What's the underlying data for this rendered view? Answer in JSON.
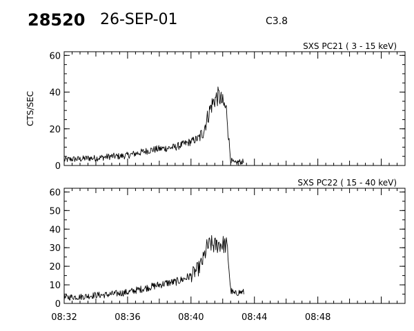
{
  "header": {
    "event_id": "28520",
    "date": "26-SEP-01",
    "flare_class": "C3.8"
  },
  "colors": {
    "ink": "#000000",
    "background": "#ffffff"
  },
  "chart_data": [
    {
      "type": "line",
      "title": "SXS PC21  (  3 - 15 keV)",
      "ylabel": "CTS/SEC",
      "xlabel": "",
      "x_unit": "UT minutes",
      "xlim": [
        "08:32",
        "08:53:30"
      ],
      "ylim": [
        0,
        62
      ],
      "yticks": [
        "0",
        "20",
        "40",
        "60"
      ],
      "yticks_values": [
        0,
        20,
        40,
        60
      ],
      "y_minor_step": 5,
      "x_tick_labels": [],
      "grid": false,
      "legend": "none",
      "series": [
        {
          "x": [
            "08:32:00",
            "08:32:30",
            "08:33:00",
            "08:33:30",
            "08:34:00",
            "08:34:30",
            "08:35:00",
            "08:35:30",
            "08:36:00",
            "08:36:30",
            "08:37:00",
            "08:37:30",
            "08:38:00",
            "08:38:30",
            "08:39:00",
            "08:39:30",
            "08:40:00",
            "08:40:30",
            "08:40:45",
            "08:41:00",
            "08:41:15",
            "08:41:30",
            "08:41:45",
            "08:42:00",
            "08:42:15",
            "08:42:20",
            "08:42:30",
            "08:42:45",
            "08:43:00",
            "08:43:20"
          ],
          "values": [
            3,
            3.5,
            3.5,
            4,
            4,
            4.5,
            5,
            5,
            5.5,
            6.5,
            7.5,
            8.5,
            9,
            9.5,
            10,
            11.5,
            13,
            15,
            18,
            25,
            32,
            36,
            38,
            34,
            30,
            20,
            3,
            1,
            2,
            2
          ]
        }
      ]
    },
    {
      "type": "line",
      "title": "SXS PC22  ( 15 - 40 keV)",
      "ylabel": "",
      "xlabel": "",
      "x_unit": "UT minutes",
      "xlim": [
        "08:32",
        "08:53:30"
      ],
      "ylim": [
        0,
        62
      ],
      "yticks": [
        "0",
        "10",
        "20",
        "30",
        "40",
        "50",
        "60"
      ],
      "yticks_values": [
        0,
        10,
        20,
        30,
        40,
        50,
        60
      ],
      "y_minor_step": 5,
      "x_tick_labels": [
        "08:32",
        "08:36",
        "08:40",
        "08:44",
        "08:48"
      ],
      "x_tick_values": [
        "08:32",
        "08:36",
        "08:40",
        "08:44",
        "08:48"
      ],
      "grid": false,
      "legend": "none",
      "series": [
        {
          "x": [
            "08:32:00",
            "08:32:30",
            "08:33:00",
            "08:33:30",
            "08:34:00",
            "08:34:30",
            "08:35:00",
            "08:35:30",
            "08:36:00",
            "08:36:30",
            "08:37:00",
            "08:37:30",
            "08:38:00",
            "08:38:30",
            "08:39:00",
            "08:39:30",
            "08:40:00",
            "08:40:30",
            "08:40:45",
            "08:41:00",
            "08:41:15",
            "08:41:30",
            "08:41:45",
            "08:42:00",
            "08:42:15",
            "08:42:20",
            "08:42:30",
            "08:42:45",
            "08:43:00",
            "08:43:20"
          ],
          "values": [
            3,
            3.5,
            3.5,
            4,
            4.5,
            4.5,
            5,
            5.5,
            6,
            7,
            8,
            9,
            10,
            11,
            11.5,
            13,
            15,
            19,
            23,
            30,
            32,
            31,
            32,
            32,
            31,
            26,
            7,
            5,
            6,
            6
          ]
        }
      ]
    }
  ]
}
